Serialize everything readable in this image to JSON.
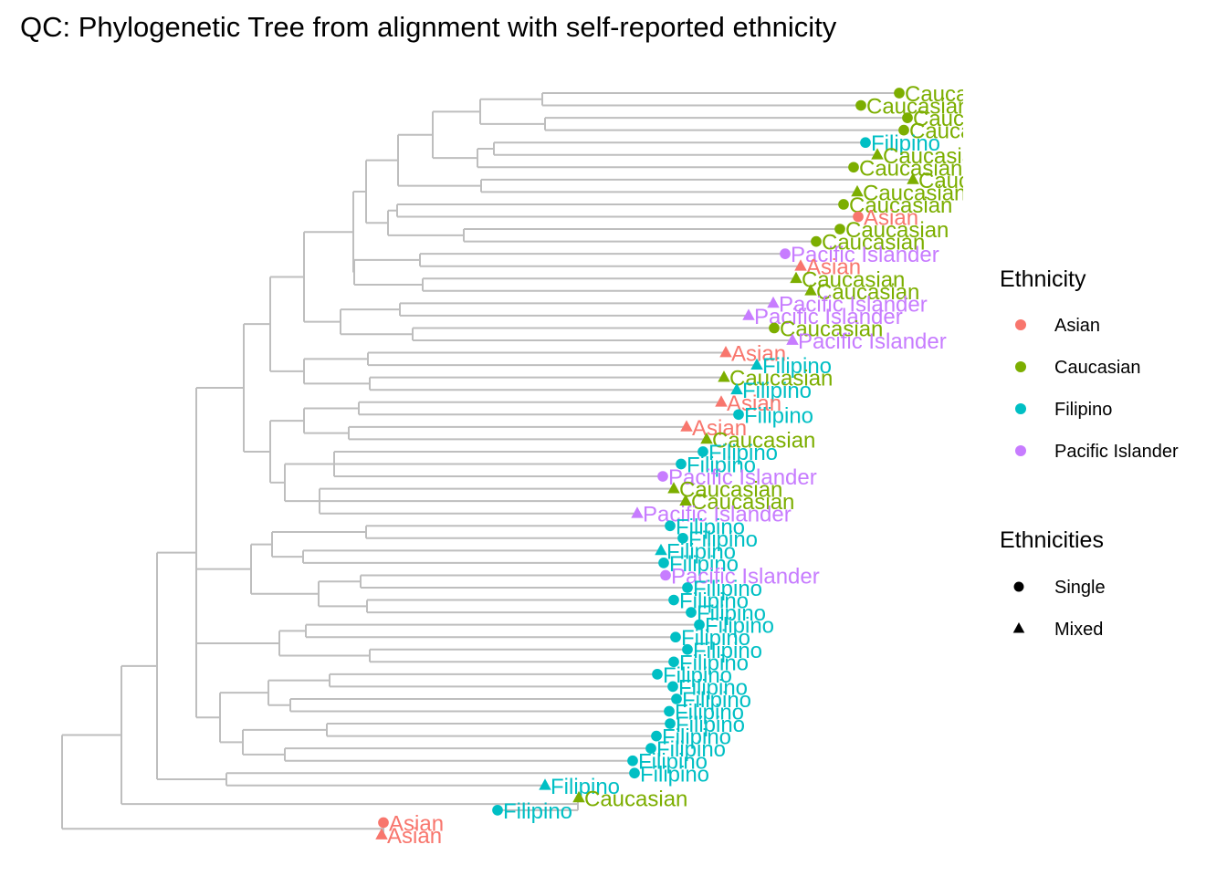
{
  "chart_data": {
    "type": "phylogenetic-tree",
    "title": "QC: Phylogenetic Tree from alignment with self-reported ethnicity",
    "colors": {
      "Asian": "#F8766D",
      "Caucasian": "#7CAE00",
      "Filipino": "#00BFC4",
      "Pacific Islander": "#C77CFF",
      "branch": "#BEBEBE"
    },
    "legends": [
      {
        "title": "Ethnicity",
        "kind": "color",
        "entries": [
          "Asian",
          "Caucasian",
          "Filipino",
          "Pacific Islander"
        ]
      },
      {
        "title": "Ethnicities",
        "kind": "shape",
        "entries": [
          "Single",
          "Mixed"
        ]
      }
    ],
    "legend_position": "right",
    "tips": [
      {
        "label": "Caucasian",
        "group": "Caucasian",
        "type": "Single"
      },
      {
        "label": "Caucasian",
        "group": "Caucasian",
        "type": "Single"
      },
      {
        "label": "Caucasian",
        "group": "Caucasian",
        "type": "Single"
      },
      {
        "label": "Caucasian",
        "group": "Caucasian",
        "type": "Single"
      },
      {
        "label": "Filipino",
        "group": "Filipino",
        "type": "Single"
      },
      {
        "label": "Caucasian",
        "group": "Caucasian",
        "type": "Mixed"
      },
      {
        "label": "Caucasian",
        "group": "Caucasian",
        "type": "Single"
      },
      {
        "label": "Caucasian",
        "group": "Caucasian",
        "type": "Mixed"
      },
      {
        "label": "Caucasian",
        "group": "Caucasian",
        "type": "Mixed"
      },
      {
        "label": "Caucasian",
        "group": "Caucasian",
        "type": "Single"
      },
      {
        "label": "Asian",
        "group": "Asian",
        "type": "Single"
      },
      {
        "label": "Caucasian",
        "group": "Caucasian",
        "type": "Single"
      },
      {
        "label": "Caucasian",
        "group": "Caucasian",
        "type": "Single"
      },
      {
        "label": "Pacific Islander",
        "group": "Pacific Islander",
        "type": "Single"
      },
      {
        "label": "Asian",
        "group": "Asian",
        "type": "Mixed"
      },
      {
        "label": "Caucasian",
        "group": "Caucasian",
        "type": "Mixed"
      },
      {
        "label": "Caucasian",
        "group": "Caucasian",
        "type": "Mixed"
      },
      {
        "label": "Pacific Islander",
        "group": "Pacific Islander",
        "type": "Mixed"
      },
      {
        "label": "Pacific Islander",
        "group": "Pacific Islander",
        "type": "Mixed"
      },
      {
        "label": "Caucasian",
        "group": "Caucasian",
        "type": "Single"
      },
      {
        "label": "Pacific Islander",
        "group": "Pacific Islander",
        "type": "Mixed"
      },
      {
        "label": "Asian",
        "group": "Asian",
        "type": "Mixed"
      },
      {
        "label": "Filipino",
        "group": "Filipino",
        "type": "Mixed"
      },
      {
        "label": "Caucasian",
        "group": "Caucasian",
        "type": "Mixed"
      },
      {
        "label": "Filipino",
        "group": "Filipino",
        "type": "Mixed"
      },
      {
        "label": "Asian",
        "group": "Asian",
        "type": "Mixed"
      },
      {
        "label": "Filipino",
        "group": "Filipino",
        "type": "Single"
      },
      {
        "label": "Asian",
        "group": "Asian",
        "type": "Mixed"
      },
      {
        "label": "Caucasian",
        "group": "Caucasian",
        "type": "Mixed"
      },
      {
        "label": "Filipino",
        "group": "Filipino",
        "type": "Single"
      },
      {
        "label": "Filipino",
        "group": "Filipino",
        "type": "Single"
      },
      {
        "label": "Pacific Islander",
        "group": "Pacific Islander",
        "type": "Single"
      },
      {
        "label": "Caucasian",
        "group": "Caucasian",
        "type": "Mixed"
      },
      {
        "label": "Caucasian",
        "group": "Caucasian",
        "type": "Mixed"
      },
      {
        "label": "Pacific Islander",
        "group": "Pacific Islander",
        "type": "Mixed"
      },
      {
        "label": "Filipino",
        "group": "Filipino",
        "type": "Single"
      },
      {
        "label": "Filipino",
        "group": "Filipino",
        "type": "Single"
      },
      {
        "label": "Filipino",
        "group": "Filipino",
        "type": "Mixed"
      },
      {
        "label": "Filipino",
        "group": "Filipino",
        "type": "Single"
      },
      {
        "label": "Pacific Islander",
        "group": "Pacific Islander",
        "type": "Single"
      },
      {
        "label": "Filipino",
        "group": "Filipino",
        "type": "Single"
      },
      {
        "label": "Filipino",
        "group": "Filipino",
        "type": "Single"
      },
      {
        "label": "Filipino",
        "group": "Filipino",
        "type": "Single"
      },
      {
        "label": "Filipino",
        "group": "Filipino",
        "type": "Single"
      },
      {
        "label": "Filipino",
        "group": "Filipino",
        "type": "Single"
      },
      {
        "label": "Filipino",
        "group": "Filipino",
        "type": "Single"
      },
      {
        "label": "Filipino",
        "group": "Filipino",
        "type": "Single"
      },
      {
        "label": "Filipino",
        "group": "Filipino",
        "type": "Single"
      },
      {
        "label": "Filipino",
        "group": "Filipino",
        "type": "Single"
      },
      {
        "label": "Filipino",
        "group": "Filipino",
        "type": "Single"
      },
      {
        "label": "Filipino",
        "group": "Filipino",
        "type": "Single"
      },
      {
        "label": "Filipino",
        "group": "Filipino",
        "type": "Single"
      },
      {
        "label": "Filipino",
        "group": "Filipino",
        "type": "Single"
      },
      {
        "label": "Filipino",
        "group": "Filipino",
        "type": "Single"
      },
      {
        "label": "Filipino",
        "group": "Filipino",
        "type": "Single"
      },
      {
        "label": "Filipino",
        "group": "Filipino",
        "type": "Single"
      },
      {
        "label": "Filipino",
        "group": "Filipino",
        "type": "Mixed"
      },
      {
        "label": "Caucasian",
        "group": "Caucasian",
        "type": "Mixed"
      },
      {
        "label": "Filipino",
        "group": "Filipino",
        "type": "Single"
      },
      {
        "label": "Asian",
        "group": "Asian",
        "type": "Single"
      },
      {
        "label": "Asian",
        "group": "Asian",
        "type": "Mixed"
      }
    ]
  }
}
